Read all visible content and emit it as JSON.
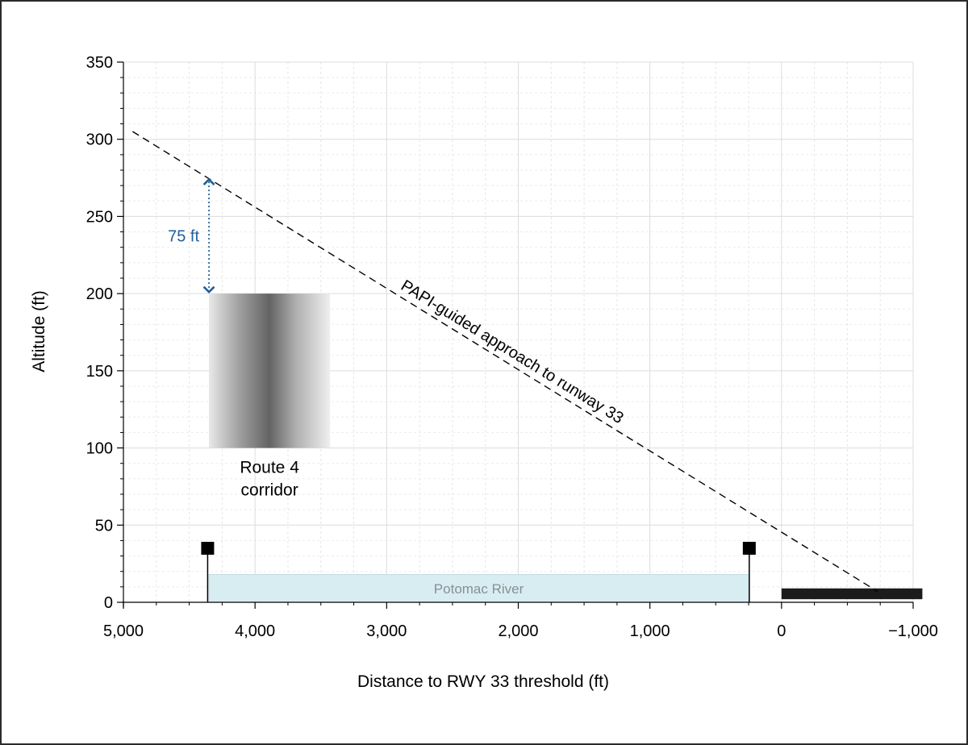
{
  "chart_data": {
    "type": "line",
    "title": "",
    "xlabel": "Distance to RWY 33 threshold (ft)",
    "ylabel": "Altitude (ft)",
    "xlim": [
      5000,
      -1000
    ],
    "ylim": [
      0,
      350
    ],
    "x_reversed": true,
    "grid": true,
    "x_ticks": [
      5000,
      4000,
      3000,
      2000,
      1000,
      0,
      -1000
    ],
    "x_tick_labels": [
      "5,000",
      "4,000",
      "3,000",
      "2,000",
      "1,000",
      "0",
      "−1,000"
    ],
    "y_ticks": [
      0,
      50,
      100,
      150,
      200,
      250,
      300,
      350
    ],
    "y_tick_labels": [
      "0",
      "50",
      "100",
      "150",
      "200",
      "250",
      "300",
      "350"
    ],
    "series": [
      {
        "name": "PAPI-guided approach to runway 33",
        "style": "dashed",
        "color": "#000000",
        "x": [
          4930,
          -730
        ],
        "y": [
          305,
          7
        ]
      }
    ],
    "annotations": {
      "approach_label": "PAPI-guided approach to runway 33",
      "route_corridor": {
        "label_line1": "Route 4",
        "label_line2": "corridor",
        "x_range": [
          4350,
          3430
        ],
        "y_range": [
          100,
          200
        ]
      },
      "separation": {
        "label": "75 ft",
        "x": 4350,
        "y_from": 200,
        "y_to": 275,
        "color": "#1f5f99"
      },
      "river": {
        "label": "Potomac River",
        "x_range": [
          4350,
          250
        ],
        "y_range": [
          0,
          18
        ],
        "color": "#d8edf2"
      },
      "markers": [
        {
          "x": 4360,
          "y": 35
        },
        {
          "x": 245,
          "y": 35
        }
      ],
      "runway": {
        "x_range": [
          0,
          -1070
        ],
        "y_range": [
          2,
          9
        ]
      }
    }
  }
}
